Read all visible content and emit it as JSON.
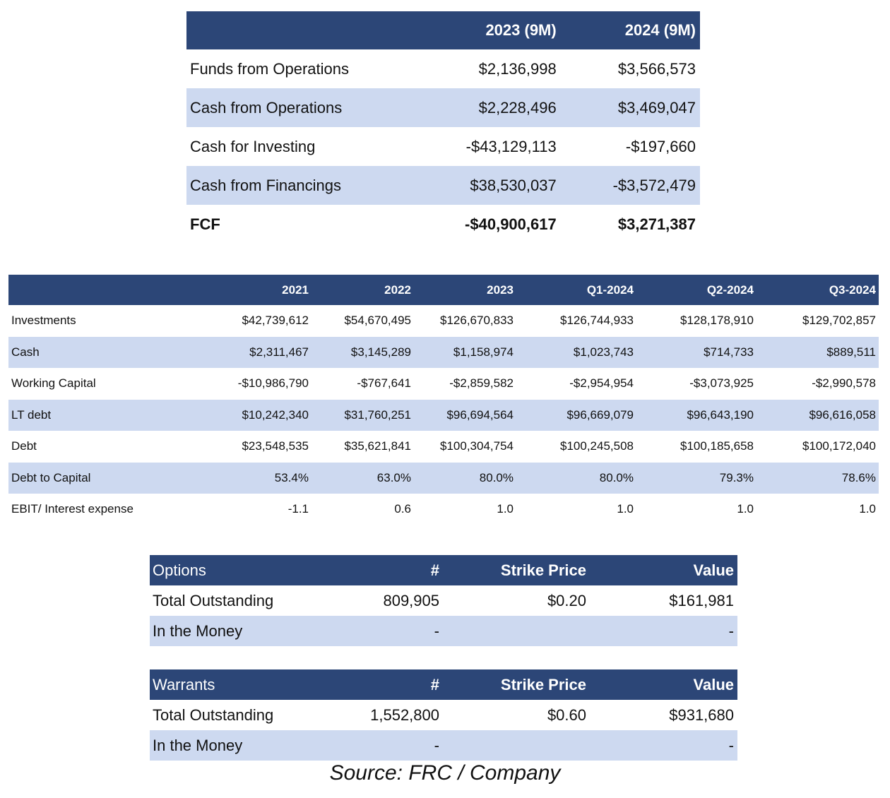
{
  "cash_flow_table": {
    "headers": [
      "",
      "2023 (9M)",
      "2024 (9M)"
    ],
    "rows": [
      {
        "label": "Funds from Operations",
        "values": [
          "$2,136,998",
          "$3,566,573"
        ]
      },
      {
        "label": "Cash from Operations",
        "values": [
          "$2,228,496",
          "$3,469,047"
        ]
      },
      {
        "label": "Cash for Investing",
        "values": [
          "-$43,129,113",
          "-$197,660"
        ]
      },
      {
        "label": "Cash from Financings",
        "values": [
          "$38,530,037",
          "-$3,572,479"
        ]
      },
      {
        "label": "FCF",
        "values": [
          "-$40,900,617",
          "$3,271,387"
        ]
      }
    ]
  },
  "balance_table": {
    "headers": [
      "",
      "2021",
      "2022",
      "2023",
      "Q1-2024",
      "Q2-2024",
      "Q3-2024"
    ],
    "rows": [
      {
        "label": "Investments",
        "values": [
          "$42,739,612",
          "$54,670,495",
          "$126,670,833",
          "$126,744,933",
          "$128,178,910",
          "$129,702,857"
        ]
      },
      {
        "label": "Cash",
        "values": [
          "$2,311,467",
          "$3,145,289",
          "$1,158,974",
          "$1,023,743",
          "$714,733",
          "$889,511"
        ]
      },
      {
        "label": "Working Capital",
        "values": [
          "-$10,986,790",
          "-$767,641",
          "-$2,859,582",
          "-$2,954,954",
          "-$3,073,925",
          "-$2,990,578"
        ]
      },
      {
        "label": "LT debt",
        "values": [
          "$10,242,340",
          "$31,760,251",
          "$96,694,564",
          "$96,669,079",
          "$96,643,190",
          "$96,616,058"
        ]
      },
      {
        "label": "Debt",
        "values": [
          "$23,548,535",
          "$35,621,841",
          "$100,304,754",
          "$100,245,508",
          "$100,185,658",
          "$100,172,040"
        ]
      },
      {
        "label": "Debt to Capital",
        "values": [
          "53.4%",
          "63.0%",
          "80.0%",
          "80.0%",
          "79.3%",
          "78.6%"
        ]
      },
      {
        "label": "EBIT/ Interest expense",
        "values": [
          "-1.1",
          "0.6",
          "1.0",
          "1.0",
          "1.0",
          "1.0"
        ]
      }
    ]
  },
  "options_table": {
    "headers": [
      "Options",
      "#",
      "Strike Price",
      "Value"
    ],
    "rows": [
      {
        "label": "Total Outstanding",
        "values": [
          "809,905",
          "$0.20",
          "$161,981"
        ]
      },
      {
        "label": "In the Money",
        "values": [
          "-",
          "",
          "-"
        ]
      }
    ]
  },
  "warrants_table": {
    "headers": [
      "Warrants",
      "#",
      "Strike Price",
      "Value"
    ],
    "rows": [
      {
        "label": "Total Outstanding",
        "values": [
          "1,552,800",
          "$0.60",
          "$931,680"
        ]
      },
      {
        "label": "In the Money",
        "values": [
          "-",
          "",
          "-"
        ]
      }
    ]
  },
  "source": "Source: FRC / Company",
  "colors": {
    "header_bg": "#2c4677",
    "alt_row_bg": "#cdd9f0"
  }
}
